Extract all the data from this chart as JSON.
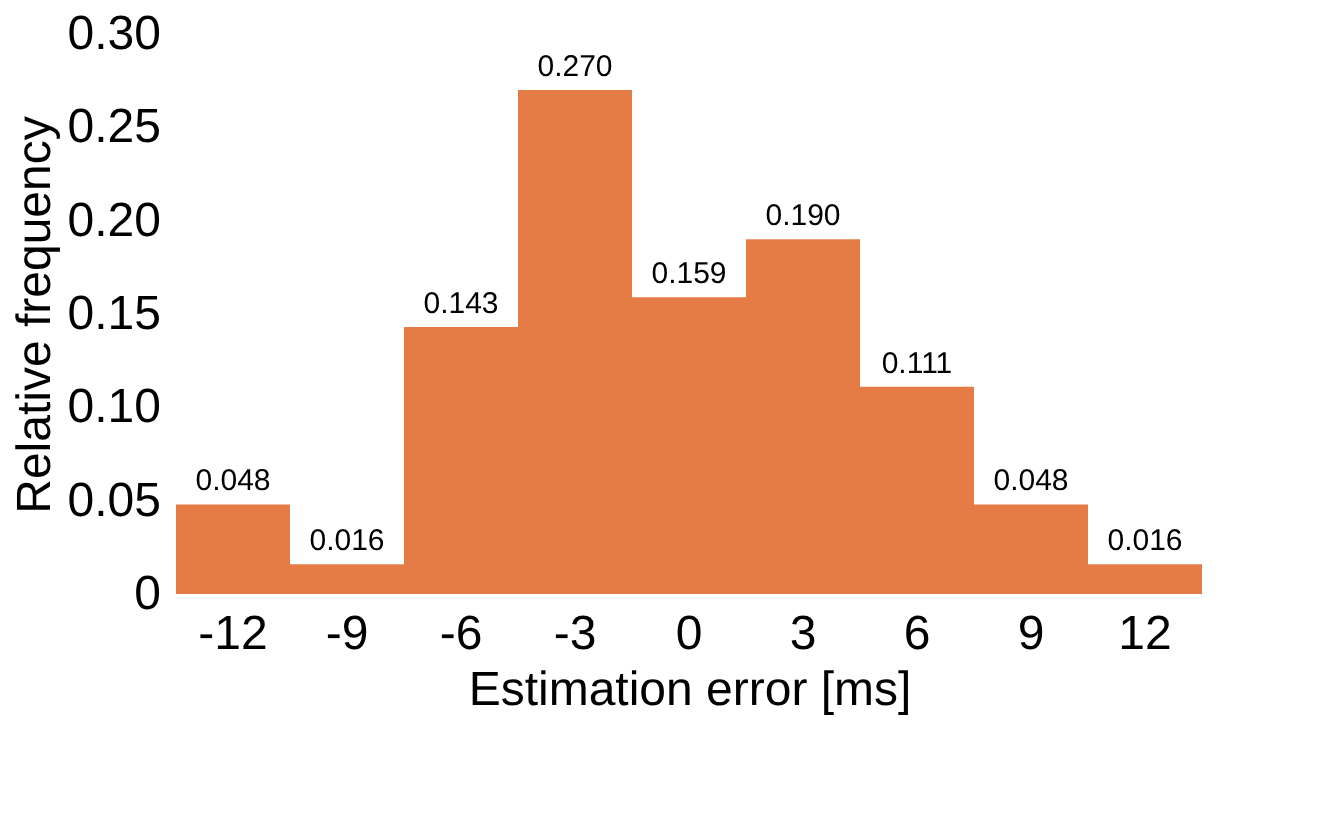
{
  "chart_data": {
    "type": "bar",
    "xlabel": "Estimation error [ms]",
    "ylabel": "Relative frequency",
    "categories": [
      "-12",
      "-9",
      "-6",
      "-3",
      "0",
      "3",
      "6",
      "9",
      "12"
    ],
    "values": [
      0.048,
      0.016,
      0.143,
      0.27,
      0.159,
      0.19,
      0.111,
      0.048,
      0.016
    ],
    "value_labels": [
      "0.048",
      "0.016",
      "0.143",
      "0.270",
      "0.159",
      "0.190",
      "0.111",
      "0.048",
      "0.016"
    ],
    "color": "#e67c45",
    "ylim": [
      0,
      0.3
    ],
    "yticks": [
      0,
      {
        "value": 0.05,
        "label": "0.05"
      },
      {
        "value": 0.1,
        "label": "0.10"
      },
      {
        "value": 0.15,
        "label": "0.15"
      },
      {
        "value": 0.2,
        "label": "0.20"
      },
      {
        "value": 0.25,
        "label": "0.25"
      },
      {
        "value": 0.3,
        "label": "0.30"
      }
    ],
    "grid": false
  }
}
